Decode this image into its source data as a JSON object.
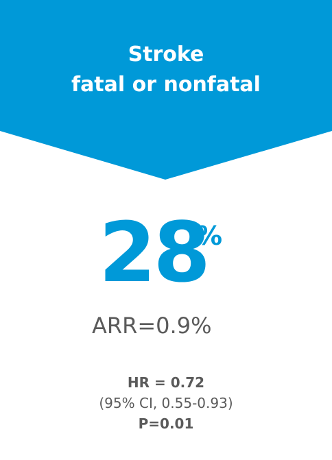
{
  "banner": {
    "title_line1": "Stroke",
    "title_line2": "fatal or nonfatal",
    "color": "#0099d8"
  },
  "headline": {
    "value": "28",
    "unit": "%",
    "color": "#0099d8"
  },
  "arr": {
    "text": "ARR=0.9%"
  },
  "stats": {
    "hr": "HR = 0.72",
    "ci": "(95% CI, 0.55-0.93)",
    "p": "P=0.01"
  }
}
